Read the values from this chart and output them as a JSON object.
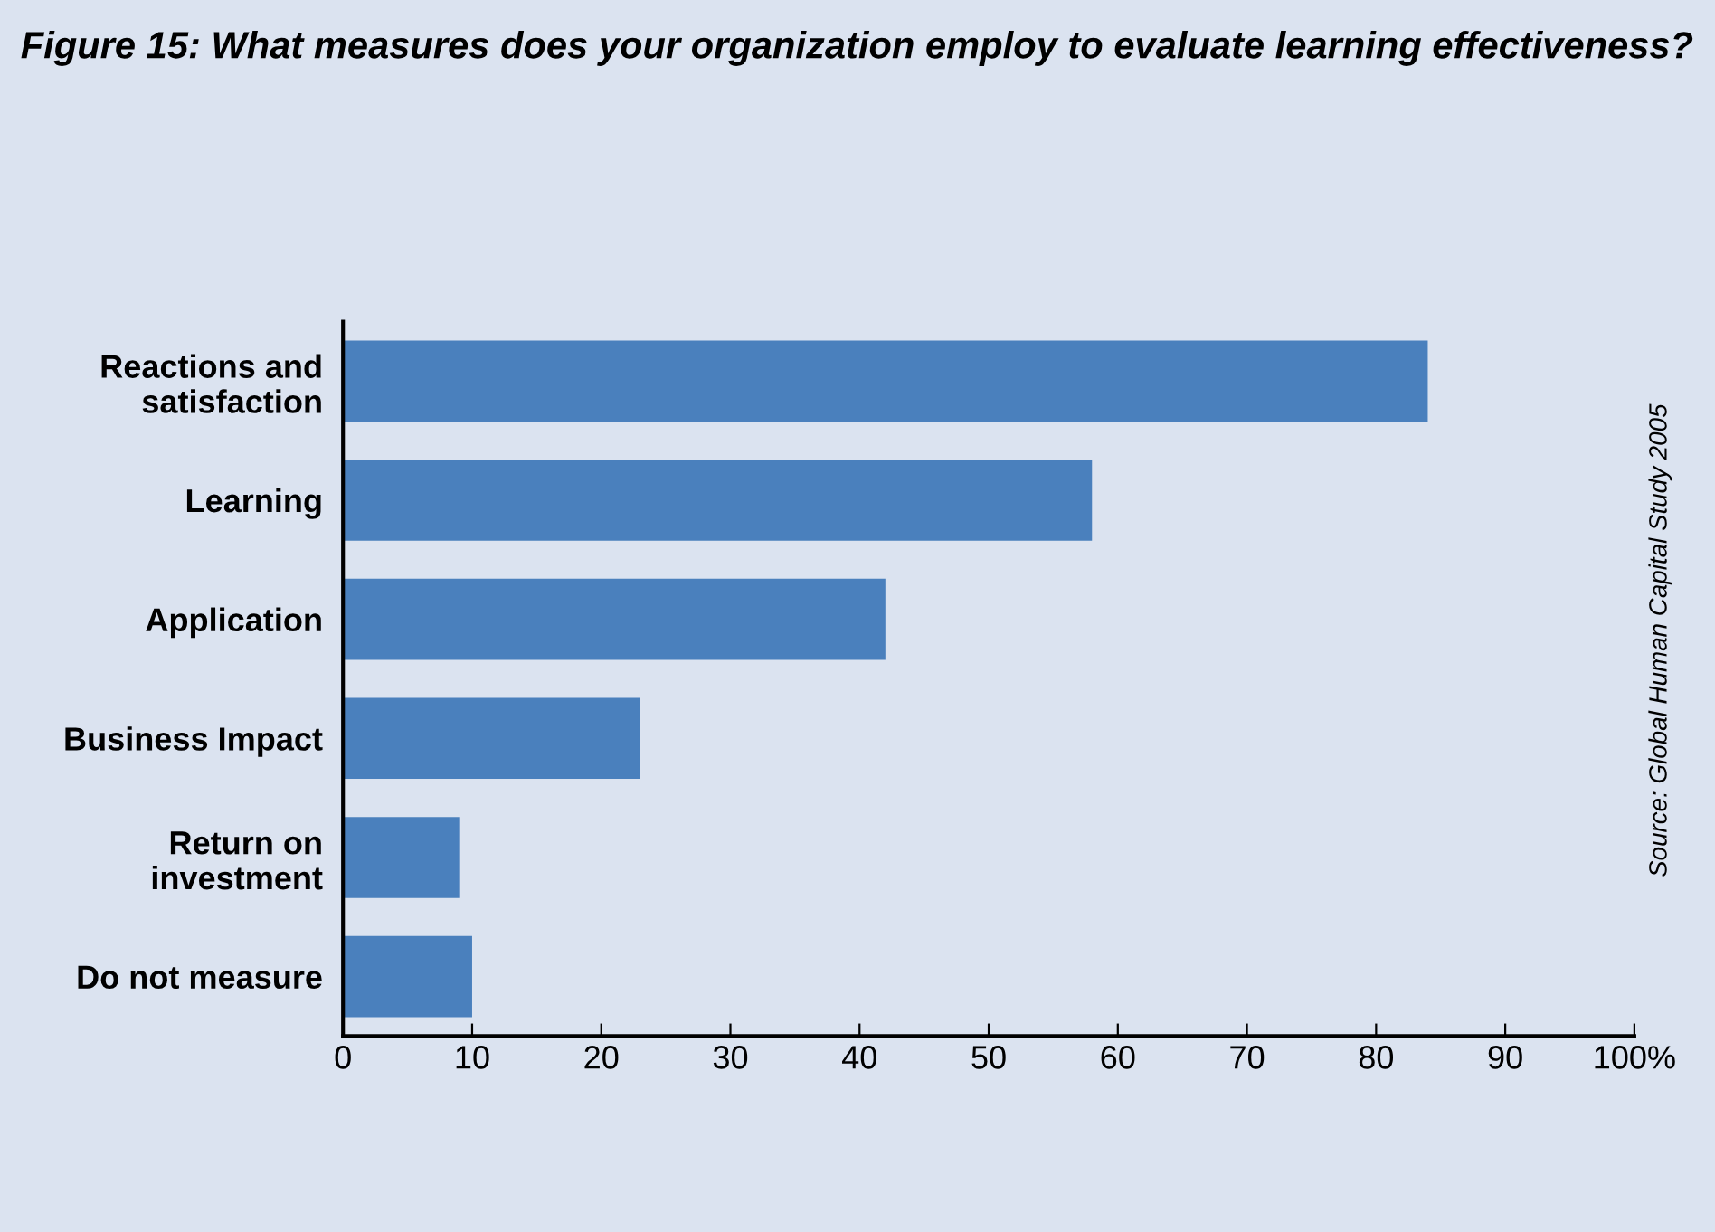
{
  "chart_data": {
    "type": "bar",
    "orientation": "horizontal",
    "title": "Figure 15: What measures does your organization employ to evaluate learning effectiveness?",
    "categories": [
      "Reactions and\nsatisfaction",
      "Learning",
      "Application",
      "Business Impact",
      "Return on\ninvestment",
      "Do not measure"
    ],
    "values": [
      84,
      58,
      42,
      23,
      9,
      10
    ],
    "color": "#4a80bd",
    "xlim": [
      0,
      100
    ],
    "xticks": [
      0,
      10,
      20,
      30,
      40,
      50,
      60,
      70,
      80,
      90,
      {
        "value": 100,
        "label": "100%"
      }
    ],
    "grid": false,
    "annotations": [
      "Source: Global Human Capital Study 2005"
    ]
  }
}
